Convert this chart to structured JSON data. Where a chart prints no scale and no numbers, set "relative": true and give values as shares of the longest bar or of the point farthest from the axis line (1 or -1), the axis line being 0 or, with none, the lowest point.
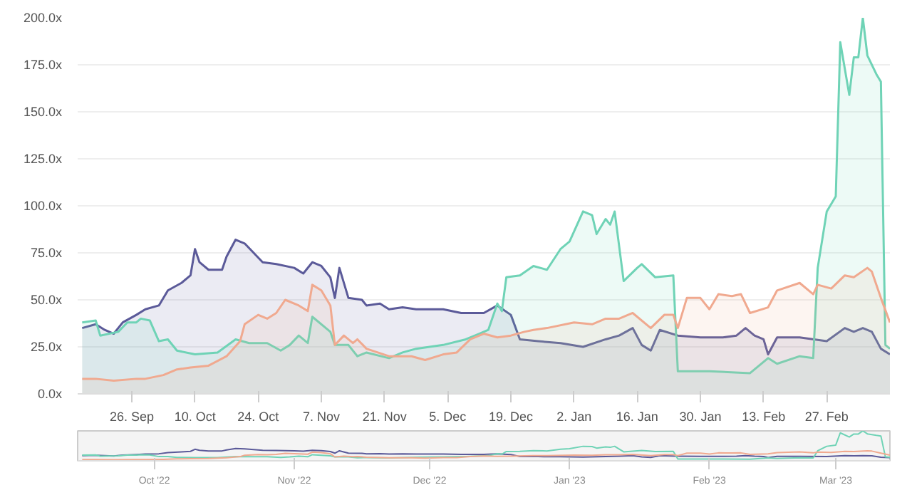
{
  "chart_data": [
    {
      "type": "area",
      "grid": "y",
      "xlim": [
        "2022-09-14",
        "2023-03-13"
      ],
      "ylim": [
        0,
        200
      ],
      "xticks": [
        {
          "value": "2022-09-26",
          "label": "26. Sep"
        },
        {
          "value": "2022-10-10",
          "label": "10. Oct"
        },
        {
          "value": "2022-10-24",
          "label": "24. Oct"
        },
        {
          "value": "2022-11-07",
          "label": "7. Nov"
        },
        {
          "value": "2022-11-21",
          "label": "21. Nov"
        },
        {
          "value": "2022-12-05",
          "label": "5. Dec"
        },
        {
          "value": "2022-12-19",
          "label": "19. Dec"
        },
        {
          "value": "2023-01-02",
          "label": "2. Jan"
        },
        {
          "value": "2023-01-16",
          "label": "16. Jan"
        },
        {
          "value": "2023-01-30",
          "label": "30. Jan"
        },
        {
          "value": "2023-02-13",
          "label": "13. Feb"
        },
        {
          "value": "2023-02-27",
          "label": "27. Feb"
        }
      ],
      "yticks": [
        {
          "value": 0,
          "label": "0.0x"
        },
        {
          "value": 25,
          "label": "25.0x"
        },
        {
          "value": 50,
          "label": "50.0x"
        },
        {
          "value": 75,
          "label": "75.0x"
        },
        {
          "value": 100,
          "label": "100.0x"
        },
        {
          "value": 125,
          "label": "125.0x"
        },
        {
          "value": 150,
          "label": "150.0x"
        },
        {
          "value": 175,
          "label": "175.0x"
        },
        {
          "value": 200,
          "label": "200.0x"
        }
      ],
      "series": [
        {
          "color": "#5b5a99",
          "x": [
            "2022-09-15",
            "2022-09-18",
            "2022-09-20",
            "2022-09-22",
            "2022-09-24",
            "2022-09-27",
            "2022-09-29",
            "2022-10-02",
            "2022-10-04",
            "2022-10-07",
            "2022-10-09",
            "2022-10-10",
            "2022-10-11",
            "2022-10-13",
            "2022-10-16",
            "2022-10-17",
            "2022-10-19",
            "2022-10-21",
            "2022-10-25",
            "2022-10-28",
            "2022-11-01",
            "2022-11-03",
            "2022-11-05",
            "2022-11-07",
            "2022-11-09",
            "2022-11-10",
            "2022-11-11",
            "2022-11-13",
            "2022-11-16",
            "2022-11-17",
            "2022-11-20",
            "2022-11-22",
            "2022-11-25",
            "2022-11-28",
            "2022-12-04",
            "2022-12-08",
            "2022-12-13",
            "2022-12-16",
            "2022-12-19",
            "2022-12-21",
            "2022-12-25",
            "2022-12-30",
            "2023-01-04",
            "2023-01-09",
            "2023-01-12",
            "2023-01-15",
            "2023-01-17",
            "2023-01-19",
            "2023-01-21",
            "2023-01-25",
            "2023-01-30",
            "2023-02-04",
            "2023-02-07",
            "2023-02-09",
            "2023-02-11",
            "2023-02-13",
            "2023-02-14",
            "2023-02-16",
            "2023-02-21",
            "2023-02-27",
            "2023-03-03",
            "2023-03-05",
            "2023-03-07",
            "2023-03-09",
            "2023-03-11",
            "2023-03-13"
          ],
          "values": [
            35,
            37,
            34,
            32,
            38,
            42,
            45,
            47,
            55,
            59,
            63,
            77,
            70,
            66,
            66,
            73,
            82,
            80,
            70,
            69,
            67,
            64,
            70,
            68,
            62,
            51,
            67,
            51,
            50,
            47,
            48,
            45,
            46,
            45,
            45,
            43,
            43,
            47,
            42,
            29,
            28,
            27,
            25,
            29,
            31,
            35,
            26,
            23,
            34,
            31,
            30,
            30,
            31,
            35,
            31,
            29,
            21,
            30,
            30,
            28,
            35,
            33,
            35,
            33,
            24,
            21
          ]
        },
        {
          "color": "#6fd3b6",
          "x": [
            "2022-09-15",
            "2022-09-18",
            "2022-09-19",
            "2022-09-23",
            "2022-09-25",
            "2022-09-27",
            "2022-09-28",
            "2022-09-30",
            "2022-10-02",
            "2022-10-04",
            "2022-10-06",
            "2022-10-10",
            "2022-10-15",
            "2022-10-19",
            "2022-10-22",
            "2022-10-26",
            "2022-10-29",
            "2022-10-31",
            "2022-11-02",
            "2022-11-04",
            "2022-11-05",
            "2022-11-09",
            "2022-11-10",
            "2022-11-13",
            "2022-11-15",
            "2022-11-17",
            "2022-11-22",
            "2022-11-25",
            "2022-11-28",
            "2022-12-04",
            "2022-12-09",
            "2022-12-12",
            "2022-12-14",
            "2022-12-16",
            "2022-12-17",
            "2022-12-18",
            "2022-12-21",
            "2022-12-24",
            "2022-12-27",
            "2022-12-30",
            "2023-01-01",
            "2023-01-04",
            "2023-01-06",
            "2023-01-07",
            "2023-01-09",
            "2023-01-10",
            "2023-01-11",
            "2023-01-13",
            "2023-01-16",
            "2023-01-17",
            "2023-01-20",
            "2023-01-24",
            "2023-01-25",
            "2023-02-01",
            "2023-02-10",
            "2023-02-14",
            "2023-02-16",
            "2023-02-21",
            "2023-02-24",
            "2023-02-25",
            "2023-02-27",
            "2023-03-01",
            "2023-03-02",
            "2023-03-04",
            "2023-03-05",
            "2023-03-06",
            "2023-03-07",
            "2023-03-08",
            "2023-03-10",
            "2023-03-11",
            "2023-03-12",
            "2023-03-13"
          ],
          "values": [
            38,
            39,
            31,
            33,
            38,
            38,
            40,
            39,
            28,
            29,
            23,
            21,
            22,
            29,
            27,
            27,
            23,
            26,
            31,
            27,
            41,
            33,
            26,
            26,
            20,
            22,
            19,
            22,
            24,
            26,
            29,
            32,
            34,
            48,
            44,
            62,
            63,
            68,
            66,
            77,
            81,
            97,
            95,
            85,
            93,
            90,
            97,
            60,
            67,
            69,
            62,
            63,
            12,
            12,
            11,
            19,
            16,
            20,
            19,
            67,
            97,
            105,
            187,
            159,
            179,
            179,
            200,
            180,
            170,
            166,
            26,
            24
          ]
        },
        {
          "color": "#f0a98f",
          "x": [
            "2022-09-15",
            "2022-09-18",
            "2022-09-22",
            "2022-09-27",
            "2022-09-29",
            "2022-10-03",
            "2022-10-06",
            "2022-10-09",
            "2022-10-13",
            "2022-10-17",
            "2022-10-20",
            "2022-10-21",
            "2022-10-24",
            "2022-10-26",
            "2022-10-28",
            "2022-10-30",
            "2022-11-02",
            "2022-11-04",
            "2022-11-05",
            "2022-11-07",
            "2022-11-09",
            "2022-11-10",
            "2022-11-12",
            "2022-11-14",
            "2022-11-15",
            "2022-11-17",
            "2022-11-22",
            "2022-11-27",
            "2022-11-30",
            "2022-12-04",
            "2022-12-07",
            "2022-12-10",
            "2022-12-13",
            "2022-12-16",
            "2022-12-19",
            "2022-12-22",
            "2022-12-24",
            "2022-12-27",
            "2023-01-02",
            "2023-01-06",
            "2023-01-09",
            "2023-01-12",
            "2023-01-15",
            "2023-01-19",
            "2023-01-22",
            "2023-01-24",
            "2023-01-25",
            "2023-01-27",
            "2023-01-30",
            "2023-02-01",
            "2023-02-03",
            "2023-02-06",
            "2023-02-08",
            "2023-02-10",
            "2023-02-14",
            "2023-02-16",
            "2023-02-21",
            "2023-02-24",
            "2023-02-25",
            "2023-02-28",
            "2023-03-03",
            "2023-03-05",
            "2023-03-08",
            "2023-03-09",
            "2023-03-11",
            "2023-03-13"
          ],
          "values": [
            8,
            8,
            7,
            8,
            8,
            10,
            13,
            14,
            15,
            20,
            28,
            37,
            42,
            40,
            43,
            50,
            47,
            44,
            58,
            55,
            47,
            26,
            31,
            27,
            29,
            24,
            20,
            20,
            18,
            21,
            22,
            29,
            32,
            30,
            31,
            33,
            34,
            35,
            38,
            37,
            40,
            40,
            43,
            35,
            42,
            42,
            35,
            51,
            51,
            45,
            53,
            52,
            53,
            43,
            46,
            55,
            59,
            53,
            58,
            56,
            63,
            62,
            67,
            65,
            51,
            38
          ]
        }
      ]
    },
    {
      "type": "line",
      "relative": true,
      "tick_labels": "x",
      "xlim": [
        "2022-09-14",
        "2023-03-13"
      ],
      "xticks": [
        {
          "value": "2022-10-01",
          "label": "Oct '22"
        },
        {
          "value": "2022-11-01",
          "label": "Nov '22"
        },
        {
          "value": "2022-12-01",
          "label": "Dec '22"
        },
        {
          "value": "2023-01-01",
          "label": "Jan '23"
        },
        {
          "value": "2023-02-01",
          "label": "Feb '23"
        },
        {
          "value": "2023-03-01",
          "label": "Mar '23"
        }
      ],
      "series": [
        {
          "color": "#5b5a99",
          "x": [
            "2022-09-15",
            "2022-09-18",
            "2022-09-20",
            "2022-09-22",
            "2022-09-24",
            "2022-09-27",
            "2022-09-29",
            "2022-10-02",
            "2022-10-04",
            "2022-10-07",
            "2022-10-09",
            "2022-10-10",
            "2022-10-11",
            "2022-10-13",
            "2022-10-16",
            "2022-10-17",
            "2022-10-19",
            "2022-10-21",
            "2022-10-25",
            "2022-10-28",
            "2022-11-01",
            "2022-11-03",
            "2022-11-05",
            "2022-11-07",
            "2022-11-09",
            "2022-11-10",
            "2022-11-11",
            "2022-11-13",
            "2022-11-16",
            "2022-11-17",
            "2022-11-20",
            "2022-11-22",
            "2022-11-25",
            "2022-11-28",
            "2022-12-04",
            "2022-12-08",
            "2022-12-13",
            "2022-12-16",
            "2022-12-19",
            "2022-12-21",
            "2022-12-25",
            "2022-12-30",
            "2023-01-04",
            "2023-01-09",
            "2023-01-12",
            "2023-01-15",
            "2023-01-17",
            "2023-01-19",
            "2023-01-21",
            "2023-01-25",
            "2023-01-30",
            "2023-02-04",
            "2023-02-07",
            "2023-02-09",
            "2023-02-11",
            "2023-02-13",
            "2023-02-14",
            "2023-02-16",
            "2023-02-21",
            "2023-02-27",
            "2023-03-03",
            "2023-03-05",
            "2023-03-07",
            "2023-03-09",
            "2023-03-11",
            "2023-03-13"
          ],
          "values": [
            0.175,
            0.185,
            0.17,
            0.16,
            0.19,
            0.21,
            0.225,
            0.235,
            0.275,
            0.295,
            0.315,
            0.385,
            0.35,
            0.33,
            0.33,
            0.365,
            0.41,
            0.4,
            0.35,
            0.345,
            0.335,
            0.32,
            0.35,
            0.34,
            0.31,
            0.255,
            0.335,
            0.255,
            0.25,
            0.235,
            0.24,
            0.225,
            0.23,
            0.225,
            0.225,
            0.215,
            0.215,
            0.235,
            0.21,
            0.145,
            0.14,
            0.135,
            0.125,
            0.145,
            0.155,
            0.175,
            0.13,
            0.115,
            0.17,
            0.155,
            0.15,
            0.15,
            0.155,
            0.175,
            0.155,
            0.145,
            0.105,
            0.15,
            0.15,
            0.14,
            0.175,
            0.165,
            0.175,
            0.165,
            0.12,
            0.105
          ]
        },
        {
          "color": "#6fd3b6",
          "x": [
            "2022-09-15",
            "2022-09-18",
            "2022-09-19",
            "2022-09-23",
            "2022-09-25",
            "2022-09-27",
            "2022-09-28",
            "2022-09-30",
            "2022-10-02",
            "2022-10-04",
            "2022-10-06",
            "2022-10-10",
            "2022-10-15",
            "2022-10-19",
            "2022-10-22",
            "2022-10-26",
            "2022-10-29",
            "2022-10-31",
            "2022-11-02",
            "2022-11-04",
            "2022-11-05",
            "2022-11-09",
            "2022-11-10",
            "2022-11-13",
            "2022-11-15",
            "2022-11-17",
            "2022-11-22",
            "2022-11-25",
            "2022-11-28",
            "2022-12-04",
            "2022-12-09",
            "2022-12-12",
            "2022-12-14",
            "2022-12-16",
            "2022-12-17",
            "2022-12-18",
            "2022-12-21",
            "2022-12-24",
            "2022-12-27",
            "2022-12-30",
            "2023-01-01",
            "2023-01-04",
            "2023-01-06",
            "2023-01-07",
            "2023-01-09",
            "2023-01-10",
            "2023-01-11",
            "2023-01-13",
            "2023-01-16",
            "2023-01-17",
            "2023-01-20",
            "2023-01-24",
            "2023-01-25",
            "2023-02-01",
            "2023-02-10",
            "2023-02-14",
            "2023-02-16",
            "2023-02-21",
            "2023-02-24",
            "2023-02-25",
            "2023-02-27",
            "2023-03-01",
            "2023-03-02",
            "2023-03-04",
            "2023-03-05",
            "2023-03-06",
            "2023-03-07",
            "2023-03-08",
            "2023-03-10",
            "2023-03-11",
            "2023-03-12",
            "2023-03-13"
          ],
          "values": [
            0.19,
            0.195,
            0.155,
            0.165,
            0.19,
            0.19,
            0.2,
            0.195,
            0.14,
            0.145,
            0.115,
            0.105,
            0.11,
            0.145,
            0.135,
            0.135,
            0.115,
            0.13,
            0.155,
            0.135,
            0.205,
            0.165,
            0.13,
            0.13,
            0.1,
            0.11,
            0.095,
            0.11,
            0.12,
            0.13,
            0.145,
            0.16,
            0.17,
            0.24,
            0.22,
            0.31,
            0.315,
            0.34,
            0.33,
            0.385,
            0.405,
            0.485,
            0.475,
            0.425,
            0.465,
            0.45,
            0.485,
            0.3,
            0.335,
            0.345,
            0.31,
            0.315,
            0.06,
            0.06,
            0.055,
            0.095,
            0.08,
            0.1,
            0.095,
            0.335,
            0.485,
            0.525,
            0.935,
            0.795,
            0.895,
            0.895,
            1,
            0.9,
            0.85,
            0.83,
            0.13,
            0.12
          ]
        },
        {
          "color": "#f0a98f",
          "x": [
            "2022-09-15",
            "2022-09-18",
            "2022-09-22",
            "2022-09-27",
            "2022-09-29",
            "2022-10-03",
            "2022-10-06",
            "2022-10-09",
            "2022-10-13",
            "2022-10-17",
            "2022-10-20",
            "2022-10-21",
            "2022-10-24",
            "2022-10-26",
            "2022-10-28",
            "2022-10-30",
            "2022-11-02",
            "2022-11-04",
            "2022-11-05",
            "2022-11-07",
            "2022-11-09",
            "2022-11-10",
            "2022-11-12",
            "2022-11-14",
            "2022-11-15",
            "2022-11-17",
            "2022-11-22",
            "2022-11-27",
            "2022-11-30",
            "2022-12-04",
            "2022-12-07",
            "2022-12-10",
            "2022-12-13",
            "2022-12-16",
            "2022-12-19",
            "2022-12-22",
            "2022-12-24",
            "2022-12-27",
            "2023-01-02",
            "2023-01-06",
            "2023-01-09",
            "2023-01-12",
            "2023-01-15",
            "2023-01-19",
            "2023-01-22",
            "2023-01-24",
            "2023-01-25",
            "2023-01-27",
            "2023-01-30",
            "2023-02-01",
            "2023-02-03",
            "2023-02-06",
            "2023-02-08",
            "2023-02-10",
            "2023-02-14",
            "2023-02-16",
            "2023-02-21",
            "2023-02-24",
            "2023-02-25",
            "2023-02-28",
            "2023-03-03",
            "2023-03-05",
            "2023-03-08",
            "2023-03-09",
            "2023-03-11",
            "2023-03-13"
          ],
          "values": [
            0.04,
            0.04,
            0.035,
            0.04,
            0.04,
            0.05,
            0.065,
            0.07,
            0.075,
            0.1,
            0.14,
            0.185,
            0.21,
            0.2,
            0.215,
            0.25,
            0.235,
            0.22,
            0.29,
            0.275,
            0.235,
            0.13,
            0.155,
            0.135,
            0.145,
            0.12,
            0.1,
            0.1,
            0.09,
            0.105,
            0.11,
            0.145,
            0.16,
            0.15,
            0.155,
            0.165,
            0.17,
            0.175,
            0.19,
            0.185,
            0.2,
            0.2,
            0.215,
            0.175,
            0.21,
            0.21,
            0.175,
            0.255,
            0.255,
            0.225,
            0.265,
            0.26,
            0.265,
            0.215,
            0.23,
            0.275,
            0.295,
            0.265,
            0.29,
            0.28,
            0.315,
            0.31,
            0.335,
            0.325,
            0.255,
            0.19
          ]
        }
      ]
    }
  ]
}
